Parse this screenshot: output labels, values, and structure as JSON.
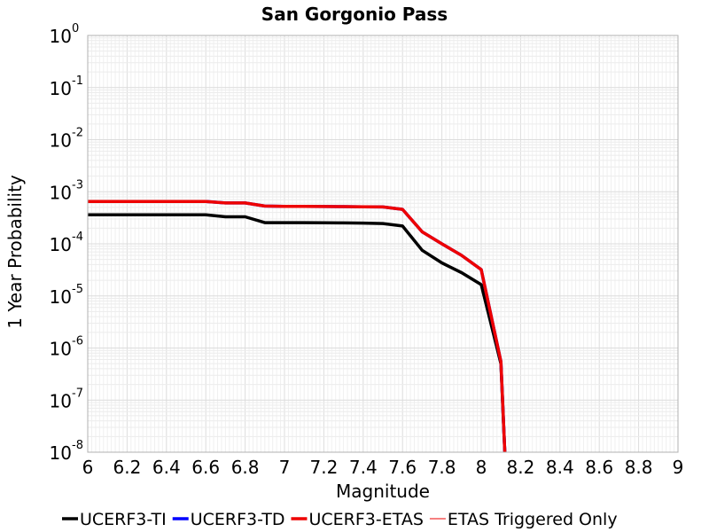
{
  "chart_data": {
    "type": "line",
    "title": "San Gorgonio Pass",
    "xlabel": "Magnitude",
    "ylabel": "1 Year Probability",
    "xlim": [
      6,
      9
    ],
    "ylim": [
      1e-08,
      1
    ],
    "yscale": "log",
    "grid": true,
    "legend_position": "bottom",
    "x_ticks": [
      "6",
      "6.2",
      "6.4",
      "6.6",
      "6.8",
      "7",
      "7.2",
      "7.4",
      "7.6",
      "7.8",
      "8",
      "8.2",
      "8.4",
      "8.6",
      "8.8",
      "9"
    ],
    "y_ticks": [
      {
        "base": "10",
        "exp": "0"
      },
      {
        "base": "10",
        "exp": "-1"
      },
      {
        "base": "10",
        "exp": "-2"
      },
      {
        "base": "10",
        "exp": "-3"
      },
      {
        "base": "10",
        "exp": "-4"
      },
      {
        "base": "10",
        "exp": "-5"
      },
      {
        "base": "10",
        "exp": "-6"
      },
      {
        "base": "10",
        "exp": "-7"
      },
      {
        "base": "10",
        "exp": "-8"
      }
    ],
    "series": [
      {
        "name": "UCERF3-TI",
        "color": "#000000",
        "width": 3.5,
        "x": [
          6.0,
          6.1,
          6.2,
          6.3,
          6.4,
          6.5,
          6.6,
          6.7,
          6.8,
          6.9,
          7.0,
          7.1,
          7.2,
          7.3,
          7.4,
          7.5,
          7.6,
          7.7,
          7.8,
          7.9,
          8.0,
          8.1,
          8.12
        ],
        "y": [
          0.00036,
          0.00036,
          0.00036,
          0.00036,
          0.00036,
          0.00036,
          0.00036,
          0.00033,
          0.00033,
          0.000255,
          0.000255,
          0.000255,
          0.000253,
          0.000252,
          0.00025,
          0.000245,
          0.00022,
          7.5e-05,
          4.3e-05,
          2.8e-05,
          1.65e-05,
          5e-07,
          1e-08
        ]
      },
      {
        "name": "UCERF3-TD",
        "color": "#0000ff",
        "width": 3.5,
        "x": [
          6.0,
          6.1,
          6.2,
          6.3,
          6.4,
          6.5,
          6.6,
          6.7,
          6.8,
          6.9,
          7.0,
          7.1,
          7.2,
          7.3,
          7.4,
          7.5,
          7.6,
          7.7,
          7.8,
          7.9,
          8.0,
          8.1,
          8.12
        ],
        "y": [
          0.00065,
          0.00065,
          0.00065,
          0.00065,
          0.00065,
          0.00065,
          0.00065,
          0.00061,
          0.00061,
          0.00053,
          0.000525,
          0.000522,
          0.00052,
          0.000518,
          0.000515,
          0.00051,
          0.00046,
          0.00017,
          0.0001,
          6e-05,
          3.2e-05,
          5.5e-07,
          1e-08
        ]
      },
      {
        "name": "UCERF3-ETAS",
        "color": "#ee0000",
        "width": 3.5,
        "x": [
          6.0,
          6.1,
          6.2,
          6.3,
          6.4,
          6.5,
          6.6,
          6.7,
          6.8,
          6.9,
          7.0,
          7.1,
          7.2,
          7.3,
          7.4,
          7.5,
          7.6,
          7.7,
          7.8,
          7.9,
          8.0,
          8.1,
          8.12
        ],
        "y": [
          0.00065,
          0.00065,
          0.00065,
          0.00065,
          0.00065,
          0.00065,
          0.00065,
          0.00061,
          0.00061,
          0.00053,
          0.000525,
          0.000522,
          0.00052,
          0.000518,
          0.000515,
          0.00051,
          0.00046,
          0.00017,
          0.0001,
          6e-05,
          3.2e-05,
          5.5e-07,
          1e-08
        ]
      },
      {
        "name": "ETAS Triggered Only",
        "color": "#ee0000",
        "width": 1,
        "x": [],
        "y": []
      }
    ]
  }
}
